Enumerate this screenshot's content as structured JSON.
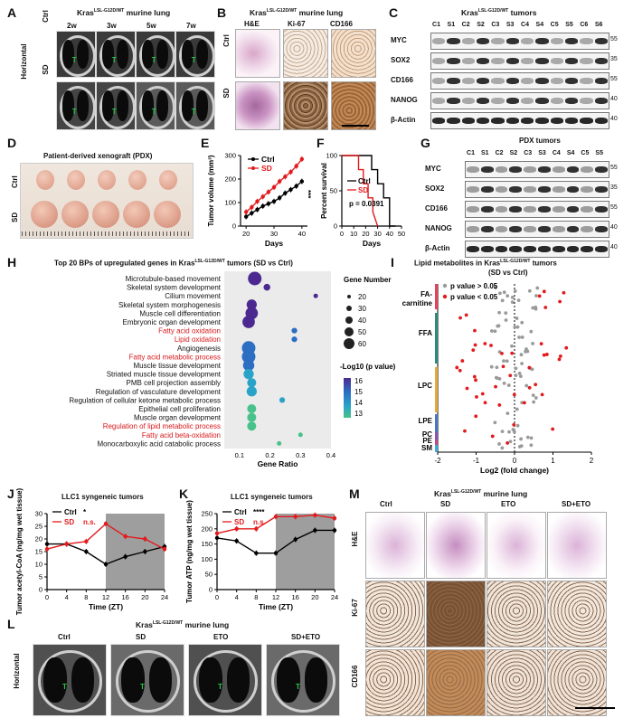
{
  "panels": {
    "A": "A",
    "B": "B",
    "C": "C",
    "D": "D",
    "E": "E",
    "F": "F",
    "G": "G",
    "H": "H",
    "I": "I",
    "J": "J",
    "K": "K",
    "L": "L",
    "M": "M"
  },
  "common": {
    "kras_title": "KrasLSL-G12D/WT murine lung",
    "ctrl": "Ctrl",
    "sd": "SD",
    "horizontal": "Horizontal",
    "beta_actin": "β-Actin"
  },
  "panelA": {
    "timepoints": [
      "2w",
      "3w",
      "5w",
      "7w"
    ],
    "rows": [
      "Ctrl",
      "SD"
    ],
    "tumor_marker": "T"
  },
  "panelB": {
    "cols": [
      "H&E",
      "Ki-67",
      "CD166"
    ]
  },
  "panelC": {
    "title": "KrasLSL-G12D/WT tumors",
    "lanes": [
      "C1",
      "S1",
      "C2",
      "S2",
      "C3",
      "S3",
      "C4",
      "S4",
      "C5",
      "S5",
      "C6",
      "S6"
    ],
    "proteins": [
      "MYC",
      "SOX2",
      "CD166",
      "NANOG",
      "β-Actin"
    ],
    "kda": [
      "55",
      "35",
      "55",
      "40",
      "40"
    ]
  },
  "panelD": {
    "title": "Patient-derived xenograft (PDX)"
  },
  "panelE": {
    "ylabel": "Tumor volume (mm³)",
    "xlabel": "Days",
    "sig": "***"
  },
  "panelF": {
    "ylabel": "Percent survival",
    "xlabel": "Days",
    "pvalue": "p = 0.0391"
  },
  "panelG": {
    "title": "PDX tumors",
    "lanes": [
      "C1",
      "S1",
      "C2",
      "S2",
      "C3",
      "S3",
      "C4",
      "S4",
      "C5",
      "S5"
    ],
    "proteins": [
      "MYC",
      "SOX2",
      "CD166",
      "NANOG",
      "β-Actin"
    ],
    "kda": [
      "55",
      "35",
      "55",
      "40",
      "40"
    ]
  },
  "panelH": {
    "title": "Top 20 BPs of upregulated genes in KrasLSL-G12D/WT tumors (SD vs Ctrl)",
    "xlabel": "Gene Ratio",
    "legend_size_title": "Gene Number",
    "legend_size_labels": [
      "20",
      "30",
      "40",
      "50",
      "60"
    ],
    "legend_color_title": "-Log10 (p value)",
    "legend_color_labels": [
      "16",
      "15",
      "14",
      "13"
    ]
  },
  "panelI": {
    "title": "Lipid metabolites in KrasLSL-G12D/WT tumors",
    "subtitle": "(SD vs Ctrl)",
    "xlabel": "Log2 (fold change)",
    "legend": [
      "p value > 0.05",
      "p value < 0.05"
    ],
    "classes": [
      "FA-carnitine",
      "FFA",
      "LPC",
      "LPE",
      "PC",
      "PE",
      "SM"
    ]
  },
  "panelJ": {
    "title": "LLC1 syngeneic tumors",
    "ylabel": "Tumor acetyl-CoA (ng/mg wet tissue)",
    "xlabel": "Time (ZT)",
    "legend_ctrl": "Ctrl",
    "legend_ctrl_sig": "*",
    "legend_sd": "SD",
    "legend_sd_sig": "n.s."
  },
  "panelK": {
    "title": "LLC1 syngeneic tumors",
    "ylabel": "Tumor ATP (ng/mg wet tissue)",
    "xlabel": "Time (ZT)",
    "legend_ctrl": "Ctrl",
    "legend_ctrl_sig": "****",
    "legend_sd": "SD",
    "legend_sd_sig": "n.s."
  },
  "panelL": {
    "cols": [
      "Ctrl",
      "SD",
      "ETO",
      "SD+ETO"
    ],
    "tumor_marker": "T"
  },
  "panelM": {
    "cols": [
      "Ctrl",
      "SD",
      "ETO",
      "SD+ETO"
    ],
    "rows": [
      "H&E",
      "Ki-67",
      "CD166"
    ]
  },
  "chart_data": [
    {
      "panel": "E",
      "type": "line",
      "xlabel": "Days",
      "ylabel": "Tumor volume (mm³)",
      "xlim": [
        18,
        42
      ],
      "ylim": [
        0,
        300
      ],
      "xticks": [
        20,
        30,
        40
      ],
      "yticks": [
        0,
        100,
        200,
        300
      ],
      "x": [
        20,
        22,
        24,
        26,
        28,
        30,
        32,
        34,
        36,
        38,
        40
      ],
      "series": [
        {
          "name": "Ctrl",
          "color": "#000000",
          "values": [
            40,
            55,
            70,
            85,
            95,
            105,
            120,
            140,
            155,
            170,
            190
          ]
        },
        {
          "name": "SD",
          "color": "#e31a1c",
          "values": [
            60,
            80,
            105,
            125,
            145,
            165,
            190,
            210,
            230,
            255,
            285
          ]
        }
      ]
    },
    {
      "panel": "F",
      "type": "line",
      "xlabel": "Days",
      "ylabel": "Percent survival",
      "xlim": [
        0,
        50
      ],
      "ylim": [
        0,
        100
      ],
      "xticks": [
        0,
        10,
        20,
        30,
        40,
        50
      ],
      "yticks": [
        0,
        50,
        100
      ],
      "series": [
        {
          "name": "Ctrl",
          "color": "#000000",
          "x": [
            0,
            25,
            25,
            30,
            30,
            35,
            35,
            40,
            40,
            45
          ],
          "values": [
            100,
            100,
            80,
            80,
            60,
            60,
            40,
            40,
            0,
            0
          ]
        },
        {
          "name": "SD",
          "color": "#e31a1c",
          "x": [
            0,
            14,
            14,
            18,
            18,
            22,
            22,
            26,
            26,
            30
          ],
          "values": [
            100,
            100,
            80,
            80,
            60,
            60,
            40,
            40,
            20,
            0
          ]
        }
      ]
    },
    {
      "panel": "J",
      "type": "line",
      "xlabel": "Time (ZT)",
      "ylabel": "Tumor acetyl-CoA (ng/mg wet tissue)",
      "xlim": [
        0,
        24
      ],
      "ylim": [
        0,
        30
      ],
      "xticks": [
        0,
        4,
        8,
        12,
        16,
        20,
        24
      ],
      "yticks": [
        0,
        5,
        10,
        15,
        20,
        25,
        30
      ],
      "shade": [
        12,
        24
      ],
      "x": [
        0,
        4,
        8,
        12,
        16,
        20,
        24
      ],
      "series": [
        {
          "name": "Ctrl",
          "color": "#000000",
          "values": [
            18,
            18,
            15,
            10,
            13,
            15,
            17
          ]
        },
        {
          "name": "SD",
          "color": "#e31a1c",
          "values": [
            16,
            18,
            19,
            26,
            21,
            20,
            16
          ]
        }
      ]
    },
    {
      "panel": "K",
      "type": "line",
      "xlabel": "Time (ZT)",
      "ylabel": "Tumor ATP (ng/mg wet tissue)",
      "xlim": [
        0,
        24
      ],
      "ylim": [
        0,
        250
      ],
      "xticks": [
        0,
        4,
        8,
        12,
        16,
        20,
        24
      ],
      "yticks": [
        0,
        50,
        100,
        150,
        200,
        250
      ],
      "shade": [
        12,
        24
      ],
      "x": [
        0,
        4,
        8,
        12,
        16,
        20,
        24
      ],
      "series": [
        {
          "name": "Ctrl",
          "color": "#000000",
          "values": [
            170,
            160,
            120,
            120,
            165,
            195,
            195
          ]
        },
        {
          "name": "SD",
          "color": "#e31a1c",
          "values": [
            185,
            200,
            200,
            240,
            240,
            245,
            235
          ]
        }
      ]
    },
    {
      "panel": "H",
      "type": "scatter",
      "xlabel": "Gene Ratio",
      "xlim": [
        0.05,
        0.4
      ],
      "xticks": [
        0.1,
        0.2,
        0.3,
        0.4
      ],
      "terms": [
        "Microtubule-based movement",
        "Skeletal system development",
        "Cilium movement",
        "Skeletal system morphogenesis",
        "Muscle cell differentiation",
        "Embryonic organ development",
        "Fatty acid oxidation",
        "Lipid oxidation",
        "Angiogenesis",
        "Fatty acid metabolic process",
        "Muscle tissue development",
        "Striated muscle tissue development",
        "PMB cell projection assembly",
        "Regulation of vasculature development",
        "Regulation of cellular ketone metabolic process",
        "Epithelial cell proliferation",
        "Muscle organ development",
        "Regulation of lipid metabolic process",
        "Fatty acid beta-oxidation",
        "Monocarboxylic acid catabolic process"
      ],
      "highlight": [
        "Fatty acid oxidation",
        "Lipid oxidation",
        "Fatty acid metabolic process",
        "Regulation of lipid metabolic process",
        "Fatty acid beta-oxidation"
      ],
      "ratio": [
        0.15,
        0.19,
        0.35,
        0.14,
        0.14,
        0.13,
        0.28,
        0.28,
        0.13,
        0.13,
        0.13,
        0.13,
        0.14,
        0.14,
        0.24,
        0.14,
        0.14,
        0.14,
        0.3,
        0.23
      ],
      "gene_number": [
        60,
        30,
        20,
        45,
        55,
        55,
        25,
        25,
        60,
        60,
        50,
        45,
        40,
        45,
        25,
        40,
        40,
        40,
        20,
        20
      ],
      "log10p": [
        16,
        16,
        16,
        16,
        16,
        16,
        15,
        15,
        15,
        15,
        15,
        14,
        14,
        14,
        14,
        13,
        13,
        13,
        13,
        13
      ]
    },
    {
      "panel": "I",
      "type": "scatter",
      "xlabel": "Log2 (fold change)",
      "xlim": [
        -2,
        2
      ],
      "xticks": [
        -2,
        -1,
        0,
        1,
        2
      ]
    }
  ]
}
